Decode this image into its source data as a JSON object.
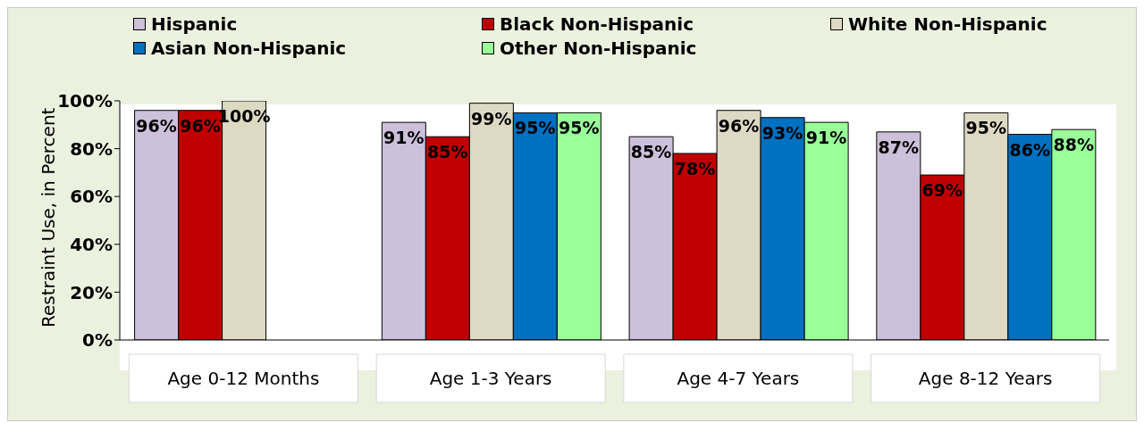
{
  "chart_data": {
    "type": "bar",
    "ylabel": "Restraint Use, in Percent",
    "categories": [
      "Age 0-12 Months",
      "Age 1-3 Years",
      "Age 4-7 Years",
      "Age 8-12 Years"
    ],
    "series": [
      {
        "name": "Hispanic",
        "color": "#ccc0da",
        "values": [
          96,
          91,
          85,
          87
        ],
        "value_labels": [
          "96%",
          "91%",
          "85%",
          "87%"
        ]
      },
      {
        "name": "Black Non-Hispanic",
        "color": "#c00000",
        "values": [
          96,
          85,
          78,
          69
        ],
        "value_labels": [
          "96%",
          "85%",
          "78%",
          "69%"
        ]
      },
      {
        "name": "White Non-Hispanic",
        "color": "#ddd9c3",
        "values": [
          100,
          99,
          96,
          95
        ],
        "value_labels": [
          "100%",
          "99%",
          "96%",
          "95%"
        ]
      },
      {
        "name": "Asian Non-Hispanic",
        "color": "#0070c0",
        "values": [
          null,
          95,
          93,
          86
        ],
        "value_labels": [
          null,
          "95%",
          "93%",
          "86%"
        ]
      },
      {
        "name": "Other Non-Hispanic",
        "color": "#99ff99",
        "values": [
          null,
          95,
          91,
          88
        ],
        "value_labels": [
          null,
          "95%",
          "91%",
          "88%"
        ]
      }
    ],
    "ylim": [
      0,
      100
    ],
    "yticks": [
      {
        "value": 0,
        "label": "0%"
      },
      {
        "value": 20,
        "label": "20%"
      },
      {
        "value": 40,
        "label": "40%"
      },
      {
        "value": 60,
        "label": "60%"
      },
      {
        "value": 80,
        "label": "80%"
      },
      {
        "value": 100,
        "label": "100%"
      }
    ],
    "grid": false,
    "legend": "top"
  }
}
